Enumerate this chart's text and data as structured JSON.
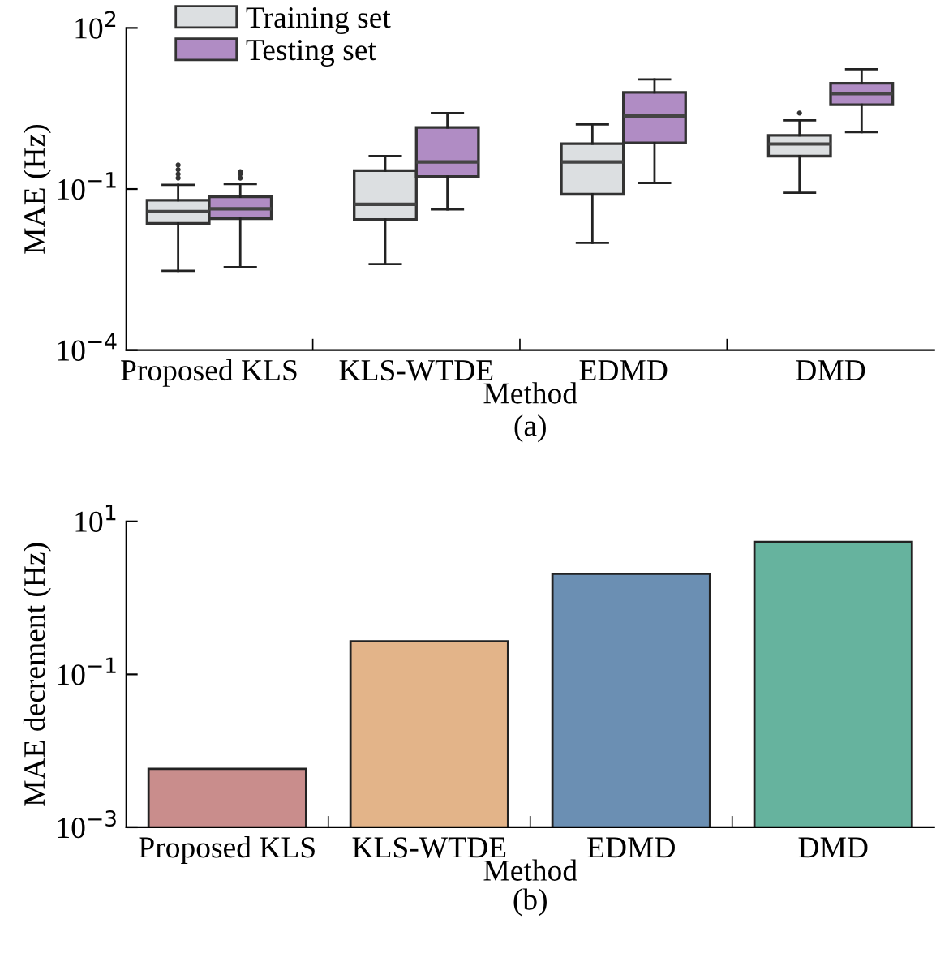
{
  "chart_data": [
    {
      "type": "box",
      "xlabel": "Method",
      "ylabel": "MAE (Hz)",
      "categories": [
        "Proposed KLS",
        "KLS-WTDE",
        "EDMD",
        "DMD"
      ],
      "log": "y",
      "ylim": [
        0.0001,
        100
      ],
      "yticks": [
        {
          "value": 0.0001,
          "label": "10$^{−4}$"
        },
        {
          "value": 0.1,
          "label": "10$^{−1}$"
        },
        {
          "value": 100,
          "label": "10$^{2}$"
        }
      ],
      "legend": "top left",
      "grid": false,
      "annotations": [
        "(a)"
      ],
      "series": [
        {
          "name": "Training set",
          "color": "#dcdfe1",
          "boxes": [
            {
              "low": 0.003,
              "q1": 0.023,
              "median": 0.038,
              "q3": 0.062,
              "high": 0.12,
              "outliers": [
                0.16,
                0.19,
                0.23,
                0.28
              ]
            },
            {
              "low": 0.004,
              "q1": 0.027,
              "median": 0.052,
              "q3": 0.22,
              "high": 0.41
            },
            {
              "low": 0.01,
              "q1": 0.08,
              "median": 0.32,
              "q3": 0.7,
              "high": 1.6
            },
            {
              "low": 0.085,
              "q1": 0.41,
              "median": 0.69,
              "q3": 1.0,
              "high": 1.9,
              "outliers": [
                2.6
              ]
            }
          ]
        },
        {
          "name": "Testing set",
          "color": "#b08cc4",
          "boxes": [
            {
              "low": 0.0035,
              "q1": 0.028,
              "median": 0.043,
              "q3": 0.072,
              "high": 0.124,
              "outliers": [
                0.16,
                0.19,
                0.21
              ]
            },
            {
              "low": 0.042,
              "q1": 0.17,
              "median": 0.32,
              "q3": 1.4,
              "high": 2.6
            },
            {
              "low": 0.13,
              "q1": 0.72,
              "median": 2.3,
              "q3": 6.3,
              "high": 11
            },
            {
              "low": 1.15,
              "q1": 3.7,
              "median": 6.0,
              "q3": 9.3,
              "high": 17
            }
          ]
        }
      ]
    },
    {
      "type": "bar",
      "xlabel": "Method",
      "ylabel": "MAE decrement (Hz)",
      "categories": [
        "Proposed KLS",
        "KLS-WTDE",
        "EDMD",
        "DMD"
      ],
      "log": "y",
      "ylim": [
        0.001,
        10
      ],
      "yticks": [
        {
          "value": 0.001,
          "label": "10$^{−3}$"
        },
        {
          "value": 0.1,
          "label": "10$^{−1}$"
        },
        {
          "value": 10,
          "label": "10$^{1}$"
        }
      ],
      "grid": false,
      "annotations": [
        "(b)"
      ],
      "values": [
        0.0058,
        0.27,
        2.07,
        5.4
      ],
      "colors": [
        "#c98d8c",
        "#e3b489",
        "#6b8fb3",
        "#66b39e"
      ]
    }
  ]
}
